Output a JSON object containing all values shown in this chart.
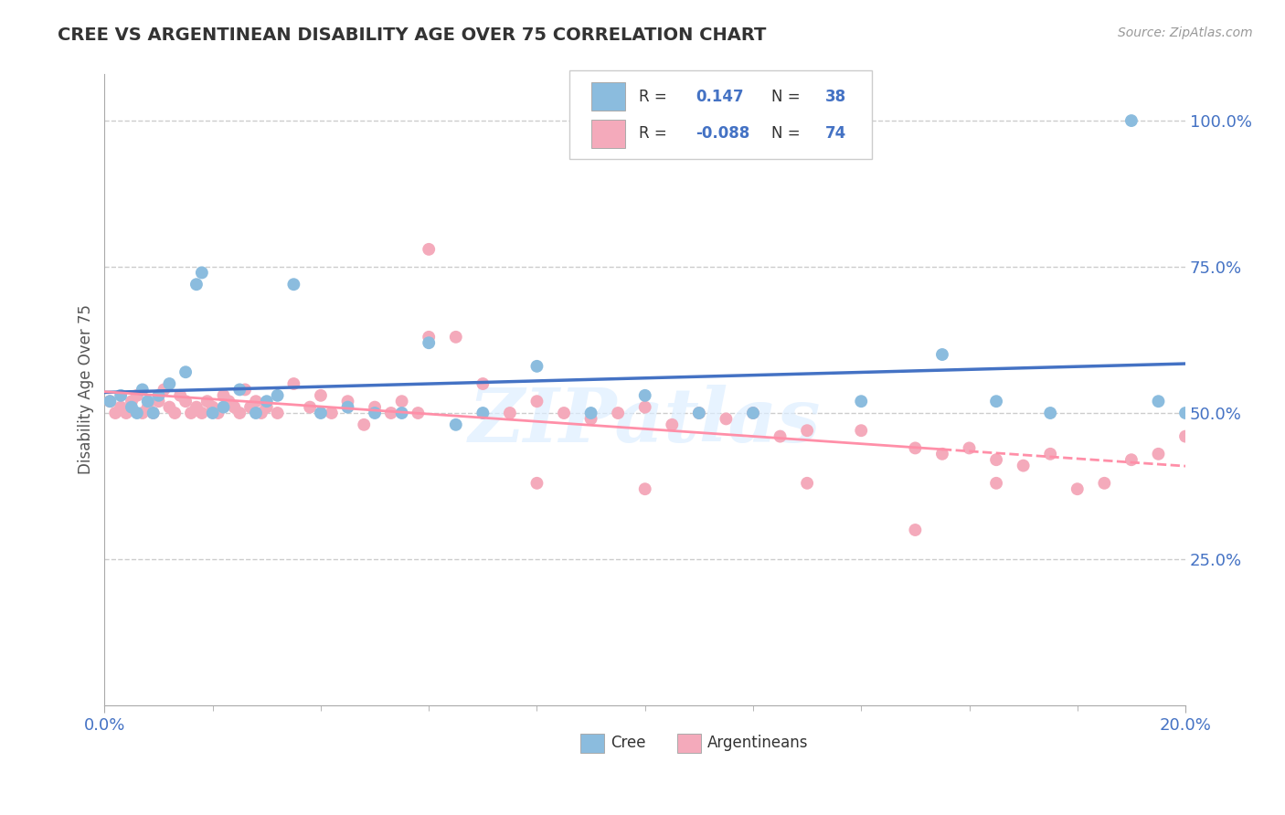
{
  "title": "CREE VS ARGENTINEAN DISABILITY AGE OVER 75 CORRELATION CHART",
  "source_text": "Source: ZipAtlas.com",
  "ylabel": "Disability Age Over 75",
  "xlim": [
    0.0,
    0.2
  ],
  "ylim": [
    0.0,
    1.08
  ],
  "ytick_positions": [
    0.25,
    0.5,
    0.75,
    1.0
  ],
  "ytick_labels": [
    "25.0%",
    "50.0%",
    "75.0%",
    "100.0%"
  ],
  "cree_R": 0.147,
  "cree_N": 38,
  "argentinean_R": -0.088,
  "argentinean_N": 74,
  "cree_color": "#8BBCDE",
  "argentinean_color": "#F4AABB",
  "cree_line_color": "#4472C4",
  "argentinean_line_color": "#FF8FA8",
  "watermark": "ZIPatlas",
  "background_color": "#FFFFFF",
  "grid_color": "#CCCCCC",
  "cree_x": [
    0.001,
    0.003,
    0.005,
    0.006,
    0.007,
    0.008,
    0.009,
    0.01,
    0.012,
    0.015,
    0.017,
    0.018,
    0.02,
    0.022,
    0.025,
    0.028,
    0.03,
    0.032,
    0.035,
    0.04,
    0.045,
    0.05,
    0.055,
    0.06,
    0.065,
    0.07,
    0.08,
    0.09,
    0.1,
    0.11,
    0.12,
    0.14,
    0.155,
    0.165,
    0.175,
    0.19,
    0.195,
    0.2
  ],
  "cree_y": [
    0.52,
    0.53,
    0.51,
    0.5,
    0.54,
    0.52,
    0.5,
    0.53,
    0.55,
    0.57,
    0.72,
    0.74,
    0.5,
    0.51,
    0.54,
    0.5,
    0.52,
    0.53,
    0.72,
    0.5,
    0.51,
    0.5,
    0.5,
    0.62,
    0.48,
    0.5,
    0.58,
    0.5,
    0.53,
    0.5,
    0.5,
    0.52,
    0.6,
    0.52,
    0.5,
    1.0,
    0.52,
    0.5
  ],
  "argentinean_x": [
    0.001,
    0.002,
    0.003,
    0.004,
    0.005,
    0.006,
    0.007,
    0.008,
    0.009,
    0.01,
    0.011,
    0.012,
    0.013,
    0.014,
    0.015,
    0.016,
    0.017,
    0.018,
    0.019,
    0.02,
    0.021,
    0.022,
    0.023,
    0.024,
    0.025,
    0.026,
    0.027,
    0.028,
    0.029,
    0.03,
    0.032,
    0.035,
    0.038,
    0.04,
    0.042,
    0.045,
    0.048,
    0.05,
    0.053,
    0.055,
    0.058,
    0.06,
    0.065,
    0.07,
    0.075,
    0.08,
    0.085,
    0.09,
    0.095,
    0.1,
    0.105,
    0.11,
    0.115,
    0.12,
    0.125,
    0.13,
    0.14,
    0.15,
    0.155,
    0.16,
    0.165,
    0.17,
    0.175,
    0.18,
    0.185,
    0.19,
    0.195,
    0.2,
    0.06,
    0.08,
    0.1,
    0.13,
    0.15,
    0.165
  ],
  "argentinean_y": [
    0.52,
    0.5,
    0.51,
    0.5,
    0.52,
    0.53,
    0.5,
    0.51,
    0.5,
    0.52,
    0.54,
    0.51,
    0.5,
    0.53,
    0.52,
    0.5,
    0.51,
    0.5,
    0.52,
    0.51,
    0.5,
    0.53,
    0.52,
    0.51,
    0.5,
    0.54,
    0.51,
    0.52,
    0.5,
    0.51,
    0.5,
    0.55,
    0.51,
    0.53,
    0.5,
    0.52,
    0.48,
    0.51,
    0.5,
    0.52,
    0.5,
    0.78,
    0.63,
    0.55,
    0.5,
    0.52,
    0.5,
    0.49,
    0.5,
    0.51,
    0.48,
    0.5,
    0.49,
    0.5,
    0.46,
    0.47,
    0.47,
    0.44,
    0.43,
    0.44,
    0.42,
    0.41,
    0.43,
    0.37,
    0.38,
    0.42,
    0.43,
    0.46,
    0.63,
    0.38,
    0.37,
    0.38,
    0.3,
    0.38
  ],
  "title_color": "#333333",
  "tick_color": "#4472C4",
  "axis_label_color": "#555555"
}
